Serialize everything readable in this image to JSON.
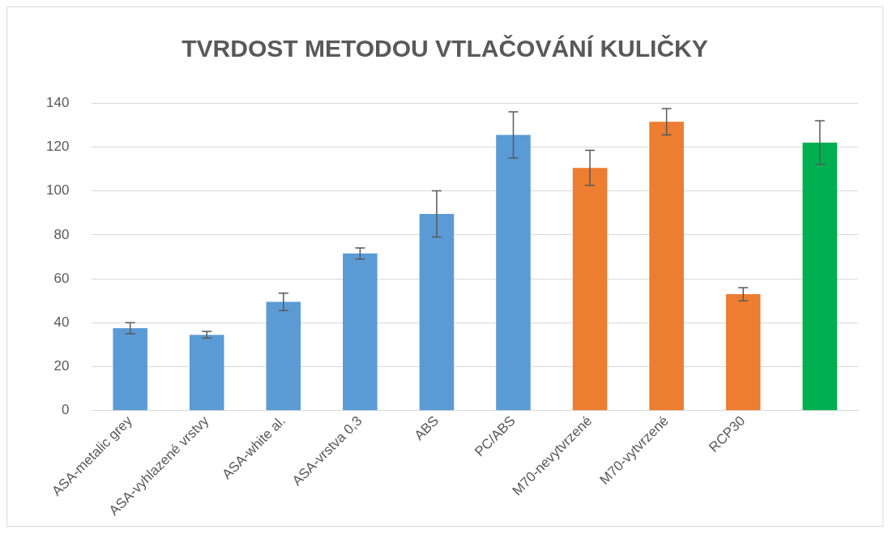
{
  "chart_data": {
    "type": "bar",
    "title": "TVRDOST METODOU VTLAČOVÁNÍ KULIČKY",
    "categories": [
      "ASA-metalic grey",
      "ASA-vyhlazené vrstvy",
      "ASA-white al.",
      "ASA-vrstva 0,3",
      "ABS",
      "PC/ABS",
      "M70-nevytvrzené",
      "M70-vytvrzené",
      "RCP30",
      null
    ],
    "values": [
      37.5,
      34.5,
      49.5,
      71.5,
      89.5,
      125.5,
      110.5,
      131.5,
      53,
      122
    ],
    "errors": [
      2.5,
      1.5,
      4,
      2.5,
      10.5,
      10.5,
      8,
      6,
      3,
      10
    ],
    "colors": [
      "#5b9bd5",
      "#5b9bd5",
      "#5b9bd5",
      "#5b9bd5",
      "#5b9bd5",
      "#5b9bd5",
      "#ed7d31",
      "#ed7d31",
      "#ed7d31",
      "#00b050"
    ],
    "ylim": [
      0,
      140
    ],
    "yticks": [
      0,
      20,
      40,
      60,
      80,
      100,
      120,
      140
    ],
    "grid": "y",
    "legend": false
  }
}
